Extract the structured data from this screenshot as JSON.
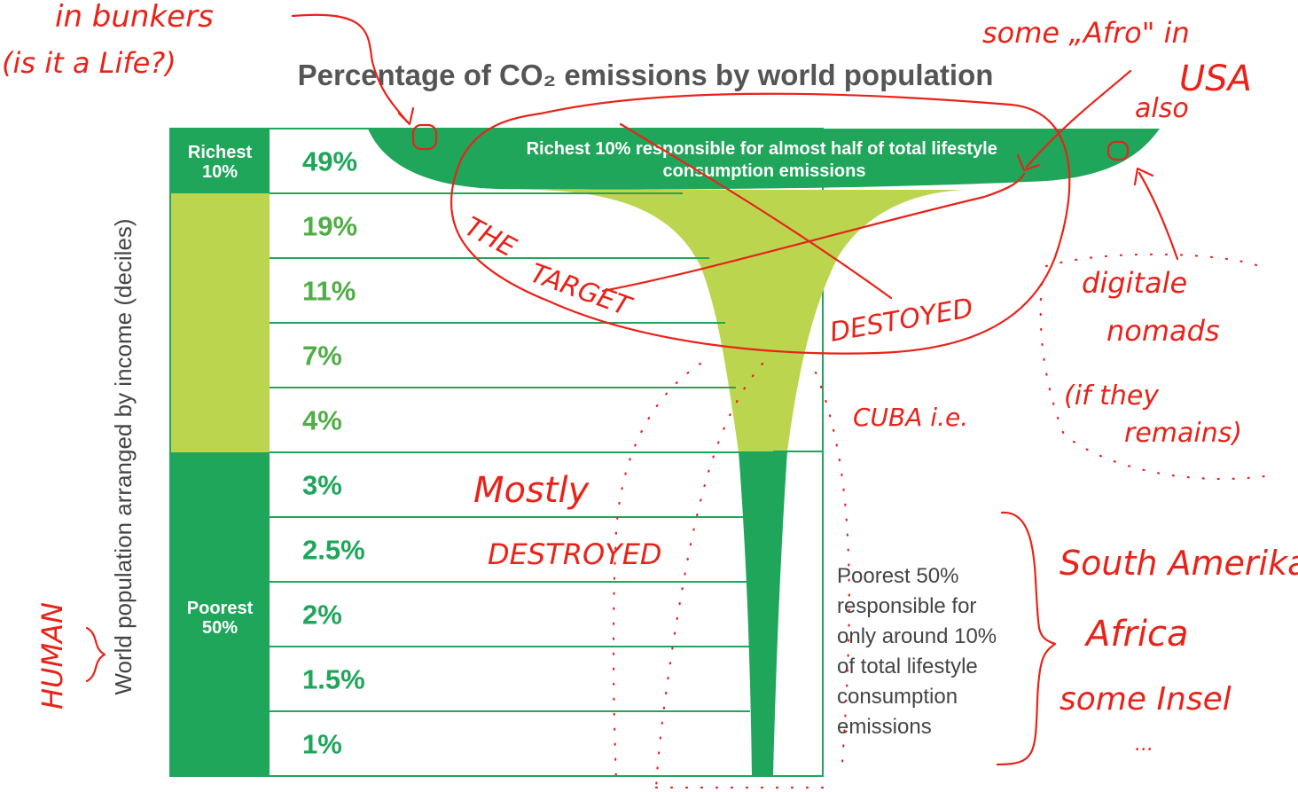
{
  "chart_data": {
    "type": "bar",
    "title": "Percentage of CO₂ emissions by world population",
    "ylabel": "World population arranged by income (deciles)",
    "categories": [
      "Richest 10%",
      "",
      "",
      "",
      "",
      "",
      "",
      "",
      "",
      ""
    ],
    "group_label_poorest": "Poorest 50%",
    "values": [
      49,
      19,
      11,
      7,
      4,
      3,
      2.5,
      2,
      1.5,
      1
    ],
    "value_labels": [
      "49%",
      "19%",
      "11%",
      "7%",
      "4%",
      "3%",
      "2.5%",
      "2%",
      "1.5%",
      "1%"
    ],
    "annotations": {
      "richest": "Richest 10% responsible for almost half of total lifestyle consumption emissions",
      "poorest": "Poorest 50% responsible for only around 10% of total lifestyle consumption emissions"
    },
    "colors": {
      "dark_green": "#1fa65a",
      "light_green": "#bcd54e",
      "title_gray": "#555555",
      "annotation_red": "#e8231a"
    }
  },
  "handwritten": {
    "bunkers_1": "in bunkers",
    "bunkers_2": "(is it a Life?)",
    "afro_1": "some „Afro\" in",
    "afro_2": "USA",
    "afro_3": "also",
    "target_1": "THE",
    "target_2": "TARGET",
    "destroyed_upper": "DESTOYED",
    "digital_1": "digitale",
    "digital_2": "nomads",
    "remains_1": "(if they",
    "remains_2": "remains)",
    "cuba": "CUBA  i.e.",
    "mostly_1": "Mostly",
    "mostly_2": "DESTROYED",
    "human": "HUMAN",
    "region_1": "South Amerika",
    "region_2": "Africa",
    "region_3": "some Insel",
    "region_4": "..."
  }
}
